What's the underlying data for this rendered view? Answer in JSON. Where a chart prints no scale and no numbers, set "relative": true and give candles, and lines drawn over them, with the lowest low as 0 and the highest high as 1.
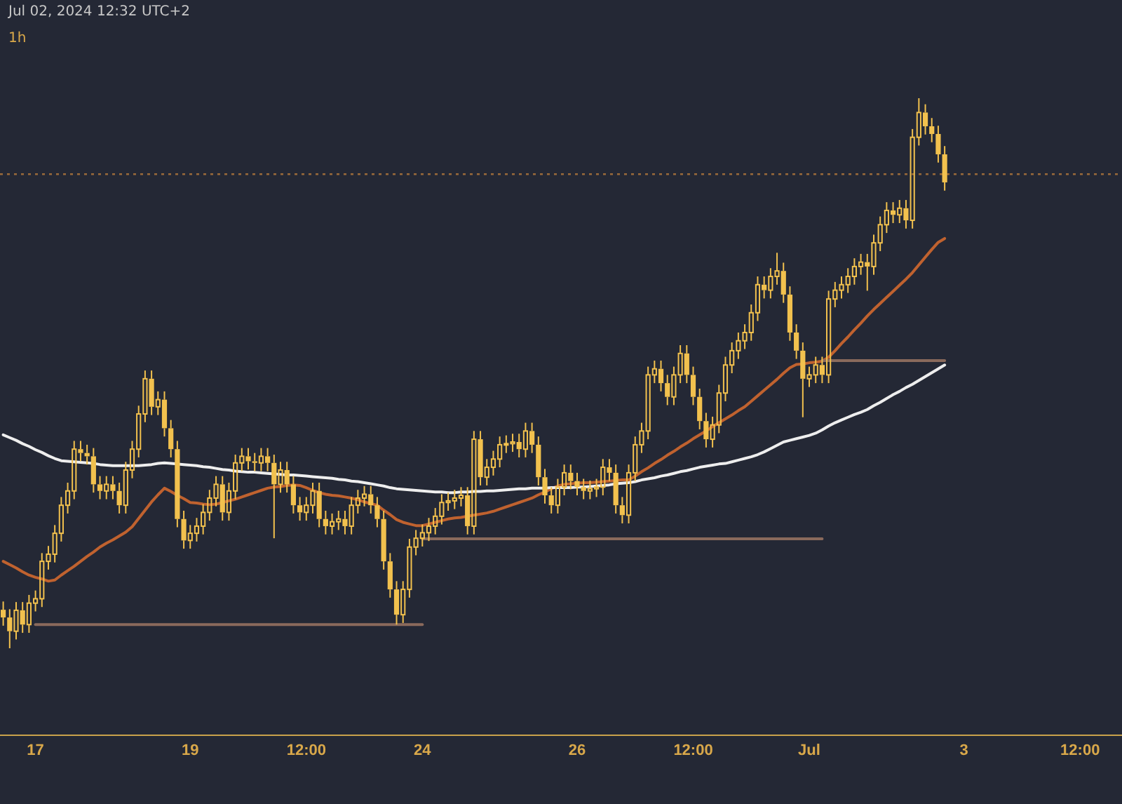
{
  "chart_data": {
    "type": "candlestick",
    "relative": true,
    "color": "#f2c14e",
    "tick_labels": "x",
    "annotations": [
      "Jul 02, 2024 12:32 UTC+2",
      "1h"
    ],
    "categories": [
      null,
      null,
      null,
      null,
      null,
      "17",
      null,
      null,
      null,
      null,
      null,
      null,
      null,
      null,
      null,
      null,
      null,
      null,
      null,
      null,
      null,
      null,
      null,
      null,
      null,
      null,
      null,
      null,
      null,
      "19",
      null,
      null,
      null,
      null,
      null,
      null,
      null,
      null,
      null,
      null,
      null,
      null,
      null,
      null,
      null,
      null,
      null,
      "12:00",
      null,
      null,
      null,
      null,
      null,
      null,
      null,
      null,
      null,
      null,
      null,
      null,
      null,
      null,
      null,
      null,
      null,
      "24",
      null,
      null,
      null,
      null,
      null,
      null,
      null,
      null,
      null,
      null,
      null,
      null,
      null,
      null,
      null,
      null,
      null,
      null,
      null,
      null,
      null,
      null,
      null,
      "26",
      null,
      null,
      null,
      null,
      null,
      null,
      null,
      null,
      null,
      null,
      null,
      null,
      null,
      null,
      null,
      null,
      null,
      "12:00",
      null,
      null,
      null,
      null,
      null,
      null,
      null,
      null,
      null,
      null,
      null,
      null,
      null,
      null,
      null,
      null,
      null,
      "Jul",
      null,
      null,
      null,
      null,
      null,
      null,
      null,
      null,
      null,
      null,
      null,
      null,
      null,
      null,
      null,
      null,
      null,
      null,
      null,
      null,
      null,
      null,
      null,
      "3",
      null,
      null,
      null,
      null,
      null,
      null,
      null,
      null,
      null,
      null,
      null,
      null,
      null,
      null,
      null,
      null,
      null,
      "12:00",
      null,
      null,
      null,
      null,
      null,
      null
    ],
    "ohlc": [
      [
        0.07,
        0.085,
        0.041,
        0.056
      ],
      [
        0.056,
        0.071,
        0,
        0.031
      ],
      [
        0.031,
        0.084,
        0.016,
        0.069
      ],
      [
        0.069,
        0.084,
        0.028,
        0.043
      ],
      [
        0.043,
        0.097,
        0.028,
        0.082
      ],
      [
        0.082,
        0.105,
        0.067,
        0.09
      ],
      [
        0.09,
        0.173,
        0.075,
        0.158
      ],
      [
        0.158,
        0.186,
        0.143,
        0.171
      ],
      [
        0.171,
        0.224,
        0.156,
        0.209
      ],
      [
        0.209,
        0.275,
        0.194,
        0.26
      ],
      [
        0.26,
        0.301,
        0.245,
        0.286
      ],
      [
        0.286,
        0.377,
        0.271,
        0.362
      ],
      [
        0.362,
        0.377,
        0.34,
        0.355
      ],
      [
        0.355,
        0.37,
        0.334,
        0.349
      ],
      [
        0.349,
        0.364,
        0.283,
        0.298
      ],
      [
        0.298,
        0.313,
        0.271,
        0.286
      ],
      [
        0.286,
        0.313,
        0.271,
        0.298
      ],
      [
        0.298,
        0.313,
        0.271,
        0.286
      ],
      [
        0.286,
        0.301,
        0.245,
        0.26
      ],
      [
        0.26,
        0.339,
        0.245,
        0.324
      ],
      [
        0.324,
        0.377,
        0.309,
        0.362
      ],
      [
        0.362,
        0.441,
        0.347,
        0.426
      ],
      [
        0.426,
        0.505,
        0.411,
        0.49
      ],
      [
        0.49,
        0.505,
        0.424,
        0.439
      ],
      [
        0.439,
        0.467,
        0.424,
        0.452
      ],
      [
        0.452,
        0.467,
        0.385,
        0.4
      ],
      [
        0.4,
        0.415,
        0.347,
        0.362
      ],
      [
        0.362,
        0.377,
        0.22,
        0.235
      ],
      [
        0.235,
        0.25,
        0.181,
        0.196
      ],
      [
        0.196,
        0.224,
        0.181,
        0.209
      ],
      [
        0.209,
        0.237,
        0.194,
        0.222
      ],
      [
        0.222,
        0.262,
        0.207,
        0.247
      ],
      [
        0.247,
        0.288,
        0.232,
        0.273
      ],
      [
        0.273,
        0.313,
        0.258,
        0.298
      ],
      [
        0.298,
        0.313,
        0.232,
        0.247
      ],
      [
        0.247,
        0.301,
        0.232,
        0.286
      ],
      [
        0.286,
        0.352,
        0.271,
        0.337
      ],
      [
        0.337,
        0.364,
        0.322,
        0.349
      ],
      [
        0.349,
        0.364,
        0.325,
        0.34
      ],
      [
        0.34,
        0.355,
        0.322,
        0.337
      ],
      [
        0.337,
        0.364,
        0.322,
        0.349
      ],
      [
        0.349,
        0.364,
        0.322,
        0.337
      ],
      [
        0.337,
        0.352,
        0.2,
        0.298
      ],
      [
        0.298,
        0.339,
        0.283,
        0.324
      ],
      [
        0.324,
        0.339,
        0.283,
        0.298
      ],
      [
        0.298,
        0.313,
        0.245,
        0.26
      ],
      [
        0.26,
        0.275,
        0.232,
        0.247
      ],
      [
        0.247,
        0.275,
        0.232,
        0.26
      ],
      [
        0.26,
        0.301,
        0.245,
        0.286
      ],
      [
        0.286,
        0.301,
        0.22,
        0.235
      ],
      [
        0.235,
        0.25,
        0.207,
        0.222
      ],
      [
        0.222,
        0.245,
        0.207,
        0.23
      ],
      [
        0.23,
        0.25,
        0.215,
        0.235
      ],
      [
        0.235,
        0.25,
        0.207,
        0.222
      ],
      [
        0.222,
        0.275,
        0.207,
        0.26
      ],
      [
        0.26,
        0.288,
        0.245,
        0.273
      ],
      [
        0.273,
        0.295,
        0.258,
        0.28
      ],
      [
        0.28,
        0.295,
        0.245,
        0.26
      ],
      [
        0.26,
        0.275,
        0.22,
        0.235
      ],
      [
        0.235,
        0.25,
        0.143,
        0.158
      ],
      [
        0.158,
        0.173,
        0.092,
        0.107
      ],
      [
        0.107,
        0.122,
        0.043,
        0.061
      ],
      [
        0.061,
        0.122,
        0.046,
        0.107
      ],
      [
        0.107,
        0.199,
        0.092,
        0.184
      ],
      [
        0.184,
        0.215,
        0.169,
        0.2
      ],
      [
        0.2,
        0.225,
        0.185,
        0.21
      ],
      [
        0.21,
        0.237,
        0.195,
        0.222
      ],
      [
        0.222,
        0.255,
        0.207,
        0.24
      ],
      [
        0.24,
        0.28,
        0.225,
        0.265
      ],
      [
        0.265,
        0.283,
        0.25,
        0.268
      ],
      [
        0.268,
        0.288,
        0.253,
        0.273
      ],
      [
        0.273,
        0.293,
        0.258,
        0.278
      ],
      [
        0.278,
        0.293,
        0.207,
        0.222
      ],
      [
        0.222,
        0.395,
        0.207,
        0.38
      ],
      [
        0.38,
        0.395,
        0.296,
        0.311
      ],
      [
        0.311,
        0.344,
        0.296,
        0.329
      ],
      [
        0.329,
        0.359,
        0.314,
        0.344
      ],
      [
        0.344,
        0.385,
        0.329,
        0.37
      ],
      [
        0.37,
        0.387,
        0.355,
        0.372
      ],
      [
        0.372,
        0.39,
        0.357,
        0.375
      ],
      [
        0.375,
        0.39,
        0.347,
        0.362
      ],
      [
        0.362,
        0.41,
        0.347,
        0.395
      ],
      [
        0.395,
        0.41,
        0.355,
        0.37
      ],
      [
        0.37,
        0.385,
        0.296,
        0.311
      ],
      [
        0.311,
        0.326,
        0.263,
        0.278
      ],
      [
        0.278,
        0.293,
        0.245,
        0.26
      ],
      [
        0.26,
        0.308,
        0.245,
        0.293
      ],
      [
        0.293,
        0.334,
        0.278,
        0.319
      ],
      [
        0.319,
        0.334,
        0.289,
        0.304
      ],
      [
        0.304,
        0.319,
        0.278,
        0.293
      ],
      [
        0.293,
        0.308,
        0.271,
        0.286
      ],
      [
        0.286,
        0.305,
        0.271,
        0.29
      ],
      [
        0.29,
        0.308,
        0.275,
        0.293
      ],
      [
        0.293,
        0.344,
        0.278,
        0.329
      ],
      [
        0.329,
        0.344,
        0.304,
        0.319
      ],
      [
        0.319,
        0.334,
        0.245,
        0.26
      ],
      [
        0.26,
        0.275,
        0.227,
        0.242
      ],
      [
        0.242,
        0.334,
        0.227,
        0.319
      ],
      [
        0.319,
        0.385,
        0.304,
        0.37
      ],
      [
        0.37,
        0.41,
        0.355,
        0.395
      ],
      [
        0.395,
        0.512,
        0.38,
        0.497
      ],
      [
        0.497,
        0.523,
        0.482,
        0.508
      ],
      [
        0.508,
        0.523,
        0.467,
        0.482
      ],
      [
        0.482,
        0.497,
        0.442,
        0.457
      ],
      [
        0.457,
        0.512,
        0.442,
        0.497
      ],
      [
        0.497,
        0.551,
        0.482,
        0.536
      ],
      [
        0.536,
        0.551,
        0.482,
        0.497
      ],
      [
        0.497,
        0.512,
        0.442,
        0.457
      ],
      [
        0.457,
        0.472,
        0.398,
        0.413
      ],
      [
        0.413,
        0.428,
        0.365,
        0.38
      ],
      [
        0.38,
        0.421,
        0.365,
        0.406
      ],
      [
        0.406,
        0.479,
        0.391,
        0.464
      ],
      [
        0.464,
        0.53,
        0.449,
        0.515
      ],
      [
        0.515,
        0.556,
        0.5,
        0.541
      ],
      [
        0.541,
        0.574,
        0.526,
        0.559
      ],
      [
        0.559,
        0.589,
        0.544,
        0.574
      ],
      [
        0.574,
        0.625,
        0.559,
        0.61
      ],
      [
        0.61,
        0.676,
        0.595,
        0.661
      ],
      [
        0.661,
        0.676,
        0.636,
        0.651
      ],
      [
        0.651,
        0.691,
        0.636,
        0.676
      ],
      [
        0.676,
        0.719,
        0.661,
        0.686
      ],
      [
        0.686,
        0.701,
        0.628,
        0.643
      ],
      [
        0.643,
        0.658,
        0.559,
        0.574
      ],
      [
        0.574,
        0.589,
        0.526,
        0.541
      ],
      [
        0.541,
        0.556,
        0.42,
        0.49
      ],
      [
        0.49,
        0.512,
        0.475,
        0.497
      ],
      [
        0.497,
        0.53,
        0.482,
        0.515
      ],
      [
        0.515,
        0.53,
        0.482,
        0.497
      ],
      [
        0.497,
        0.65,
        0.482,
        0.635
      ],
      [
        0.635,
        0.666,
        0.62,
        0.651
      ],
      [
        0.651,
        0.676,
        0.636,
        0.661
      ],
      [
        0.661,
        0.691,
        0.646,
        0.676
      ],
      [
        0.676,
        0.709,
        0.661,
        0.694
      ],
      [
        0.694,
        0.717,
        0.679,
        0.702
      ],
      [
        0.702,
        0.717,
        0.65,
        0.694
      ],
      [
        0.694,
        0.752,
        0.679,
        0.737
      ],
      [
        0.737,
        0.785,
        0.722,
        0.77
      ],
      [
        0.77,
        0.811,
        0.755,
        0.796
      ],
      [
        0.796,
        0.811,
        0.773,
        0.788
      ],
      [
        0.788,
        0.815,
        0.773,
        0.8
      ],
      [
        0.8,
        0.815,
        0.763,
        0.778
      ],
      [
        0.778,
        0.944,
        0.763,
        0.929
      ],
      [
        0.929,
        1,
        0.914,
        0.974
      ],
      [
        0.974,
        0.989,
        0.934,
        0.949
      ],
      [
        0.949,
        0.964,
        0.92,
        0.935
      ],
      [
        0.935,
        0.95,
        0.883,
        0.898
      ],
      [
        0.898,
        0.913,
        0.832,
        0.847
      ],
      null,
      null,
      null,
      null,
      null,
      null,
      null,
      null,
      null,
      null,
      null,
      null,
      null,
      null,
      null,
      null,
      null,
      null,
      null,
      null,
      null,
      null,
      null,
      null,
      null,
      null,
      null
    ],
    "series": [
      {
        "type": "line",
        "color": "#c0622f",
        "values": [
          0.158,
          0.152,
          0.146,
          0.139,
          0.133,
          0.129,
          0.126,
          0.122,
          0.124,
          0.133,
          0.141,
          0.149,
          0.158,
          0.167,
          0.175,
          0.184,
          0.191,
          0.197,
          0.204,
          0.211,
          0.221,
          0.236,
          0.251,
          0.266,
          0.279,
          0.291,
          0.285,
          0.278,
          0.272,
          0.265,
          0.264,
          0.262,
          0.261,
          0.262,
          0.265,
          0.268,
          0.271,
          0.275,
          0.279,
          0.283,
          0.287,
          0.291,
          0.293,
          0.294,
          0.296,
          0.297,
          0.296,
          0.292,
          0.287,
          0.283,
          0.28,
          0.278,
          0.277,
          0.275,
          0.273,
          0.27,
          0.266,
          0.263,
          0.26,
          0.251,
          0.243,
          0.234,
          0.229,
          0.226,
          0.223,
          0.223,
          0.226,
          0.229,
          0.232,
          0.235,
          0.237,
          0.238,
          0.24,
          0.242,
          0.244,
          0.246,
          0.249,
          0.253,
          0.257,
          0.261,
          0.265,
          0.269,
          0.273,
          0.279,
          0.284,
          0.29,
          0.295,
          0.298,
          0.299,
          0.3,
          0.301,
          0.301,
          0.302,
          0.303,
          0.304,
          0.305,
          0.306,
          0.306,
          0.313,
          0.321,
          0.328,
          0.336,
          0.343,
          0.351,
          0.358,
          0.366,
          0.373,
          0.381,
          0.388,
          0.395,
          0.403,
          0.41,
          0.417,
          0.424,
          0.432,
          0.439,
          0.449,
          0.459,
          0.469,
          0.479,
          0.489,
          0.5,
          0.51,
          0.516,
          0.517,
          0.519,
          0.52,
          0.522,
          0.529,
          0.541,
          0.554,
          0.566,
          0.579,
          0.591,
          0.604,
          0.616,
          0.627,
          0.638,
          0.649,
          0.66,
          0.671,
          0.683,
          0.697,
          0.711,
          0.725,
          0.738,
          0.745,
          null,
          null,
          null,
          null,
          null,
          null,
          null,
          null,
          null,
          null,
          null,
          null,
          null,
          null,
          null,
          null,
          null,
          null,
          null,
          null,
          null,
          null,
          null,
          null,
          null,
          null,
          null
        ]
      },
      {
        "type": "line",
        "color": "#eeeeee",
        "values": [
          0.388,
          0.383,
          0.378,
          0.372,
          0.367,
          0.361,
          0.356,
          0.35,
          0.345,
          0.341,
          0.34,
          0.339,
          0.338,
          0.337,
          0.336,
          0.334,
          0.333,
          0.332,
          0.332,
          0.332,
          0.332,
          0.332,
          0.333,
          0.334,
          0.336,
          0.337,
          0.336,
          0.335,
          0.334,
          0.333,
          0.332,
          0.33,
          0.329,
          0.327,
          0.325,
          0.324,
          0.322,
          0.321,
          0.32,
          0.32,
          0.319,
          0.318,
          0.317,
          0.316,
          0.315,
          0.315,
          0.314,
          0.313,
          0.312,
          0.311,
          0.31,
          0.309,
          0.307,
          0.306,
          0.304,
          0.303,
          0.301,
          0.299,
          0.297,
          0.295,
          0.292,
          0.29,
          0.289,
          0.288,
          0.287,
          0.286,
          0.285,
          0.284,
          0.284,
          0.283,
          0.283,
          0.284,
          0.284,
          0.285,
          0.285,
          0.286,
          0.286,
          0.287,
          0.288,
          0.289,
          0.29,
          0.29,
          0.291,
          0.291,
          0.291,
          0.292,
          0.292,
          0.292,
          0.292,
          0.293,
          0.293,
          0.294,
          0.295,
          0.296,
          0.297,
          0.299,
          0.3,
          0.301,
          0.303,
          0.306,
          0.308,
          0.31,
          0.313,
          0.315,
          0.318,
          0.321,
          0.323,
          0.326,
          0.329,
          0.331,
          0.333,
          0.335,
          0.336,
          0.339,
          0.342,
          0.345,
          0.348,
          0.352,
          0.357,
          0.363,
          0.369,
          0.375,
          0.378,
          0.381,
          0.384,
          0.387,
          0.391,
          0.397,
          0.404,
          0.41,
          0.415,
          0.42,
          0.425,
          0.429,
          0.434,
          0.441,
          0.447,
          0.454,
          0.461,
          0.467,
          0.474,
          0.48,
          0.487,
          0.494,
          0.501,
          0.508,
          0.515,
          null,
          null,
          null,
          null,
          null,
          null,
          null,
          null,
          null,
          null,
          null,
          null,
          null,
          null,
          null,
          null,
          null,
          null,
          null,
          null,
          null,
          null,
          null,
          null,
          null,
          null,
          null
        ]
      },
      {
        "type": "line",
        "color": "#8a6a5c",
        "values": [
          null,
          null,
          null,
          null,
          null,
          0.043,
          0.043,
          0.043,
          0.043,
          0.043,
          0.043,
          0.043,
          0.043,
          0.043,
          0.043,
          0.043,
          0.043,
          0.043,
          0.043,
          0.043,
          0.043,
          0.043,
          0.043,
          0.043,
          0.043,
          0.043,
          0.043,
          0.043,
          0.043,
          0.043,
          0.043,
          0.043,
          0.043,
          0.043,
          0.043,
          0.043,
          0.043,
          0.043,
          0.043,
          0.043,
          0.043,
          0.043,
          0.043,
          0.043,
          0.043,
          0.043,
          0.043,
          0.043,
          0.043,
          0.043,
          0.043,
          0.043,
          0.043,
          0.043,
          0.043,
          0.043,
          0.043,
          0.043,
          0.043,
          0.043,
          0.043,
          0.043,
          0.043,
          0.043,
          0.043,
          0.043,
          null,
          null,
          null,
          null,
          null,
          null,
          null,
          null,
          null,
          null,
          null,
          null,
          null,
          null,
          null,
          null,
          null,
          null,
          null,
          null,
          null,
          null,
          null,
          null,
          null,
          null,
          null,
          null,
          null,
          null,
          null,
          null,
          null,
          null,
          null,
          null,
          null,
          null,
          null,
          null,
          null,
          null,
          null,
          null,
          null,
          null,
          null,
          null,
          null,
          null,
          null,
          null,
          null,
          null,
          null,
          null,
          null,
          null,
          null,
          null,
          null,
          null,
          null,
          null,
          null,
          null,
          null,
          null,
          null,
          null,
          null,
          null,
          null,
          null,
          null,
          null,
          null,
          null,
          null,
          null,
          null,
          null,
          null,
          null,
          null,
          null,
          null,
          null,
          null,
          null,
          null,
          null,
          null,
          null,
          null,
          null,
          null,
          null,
          null,
          null,
          null,
          null,
          null,
          null,
          null,
          null,
          null,
          null
        ]
      },
      {
        "type": "line",
        "color": "#8a6a5c",
        "values": [
          null,
          null,
          null,
          null,
          null,
          null,
          null,
          null,
          null,
          null,
          null,
          null,
          null,
          null,
          null,
          null,
          null,
          null,
          null,
          null,
          null,
          null,
          null,
          null,
          null,
          null,
          null,
          null,
          null,
          null,
          null,
          null,
          null,
          null,
          null,
          null,
          null,
          null,
          null,
          null,
          null,
          null,
          null,
          null,
          null,
          null,
          null,
          null,
          null,
          null,
          null,
          null,
          null,
          null,
          null,
          null,
          null,
          null,
          null,
          null,
          null,
          null,
          null,
          null,
          null,
          0.199,
          0.199,
          0.199,
          0.199,
          0.199,
          0.199,
          0.199,
          0.199,
          0.199,
          0.199,
          0.199,
          0.199,
          0.199,
          0.199,
          0.199,
          0.199,
          0.199,
          0.199,
          0.199,
          0.199,
          0.199,
          0.199,
          0.199,
          0.199,
          0.199,
          0.199,
          0.199,
          0.199,
          0.199,
          0.199,
          0.199,
          0.199,
          0.199,
          0.199,
          0.199,
          0.199,
          0.199,
          0.199,
          0.199,
          0.199,
          0.199,
          0.199,
          0.199,
          0.199,
          0.199,
          0.199,
          0.199,
          0.199,
          0.199,
          0.199,
          0.199,
          0.199,
          0.199,
          0.199,
          0.199,
          0.199,
          0.199,
          0.199,
          0.199,
          0.199,
          0.199,
          0.199,
          0.199,
          null,
          null,
          null,
          null,
          null,
          null,
          null,
          null,
          null,
          null,
          null,
          null,
          null,
          null,
          null,
          null,
          null,
          null,
          null,
          null,
          null,
          null,
          null,
          null,
          null,
          null,
          null,
          null,
          null,
          null,
          null,
          null,
          null,
          null,
          null,
          null,
          null,
          null,
          null,
          null,
          null,
          null,
          null,
          null,
          null,
          null
        ]
      },
      {
        "type": "line",
        "color": "#8a6a5c",
        "values": [
          null,
          null,
          null,
          null,
          null,
          null,
          null,
          null,
          null,
          null,
          null,
          null,
          null,
          null,
          null,
          null,
          null,
          null,
          null,
          null,
          null,
          null,
          null,
          null,
          null,
          null,
          null,
          null,
          null,
          null,
          null,
          null,
          null,
          null,
          null,
          null,
          null,
          null,
          null,
          null,
          null,
          null,
          null,
          null,
          null,
          null,
          null,
          null,
          null,
          null,
          null,
          null,
          null,
          null,
          null,
          null,
          null,
          null,
          null,
          null,
          null,
          null,
          null,
          null,
          null,
          null,
          null,
          null,
          null,
          null,
          null,
          null,
          null,
          null,
          null,
          null,
          null,
          null,
          null,
          null,
          null,
          null,
          null,
          null,
          null,
          null,
          null,
          null,
          null,
          null,
          null,
          null,
          null,
          null,
          null,
          null,
          null,
          null,
          null,
          null,
          null,
          null,
          null,
          null,
          null,
          null,
          null,
          null,
          null,
          null,
          null,
          null,
          null,
          null,
          null,
          null,
          null,
          null,
          null,
          null,
          null,
          null,
          null,
          null,
          null,
          null,
          null,
          0.523,
          0.523,
          0.523,
          0.523,
          0.523,
          0.523,
          0.523,
          0.523,
          0.523,
          0.523,
          0.523,
          0.523,
          0.523,
          0.523,
          0.523,
          0.523,
          0.523,
          0.523,
          0.523,
          0.523,
          null,
          null,
          null,
          null,
          null,
          null,
          null,
          null,
          null,
          null,
          null,
          null,
          null,
          null,
          null,
          null,
          null,
          null,
          null,
          null,
          null,
          null,
          null,
          null,
          null,
          null,
          null
        ]
      }
    ],
    "ref_lines": [
      {
        "axis": "y",
        "value": 0.862,
        "color": "#9a6a3a",
        "line_style": "dotted"
      }
    ]
  }
}
